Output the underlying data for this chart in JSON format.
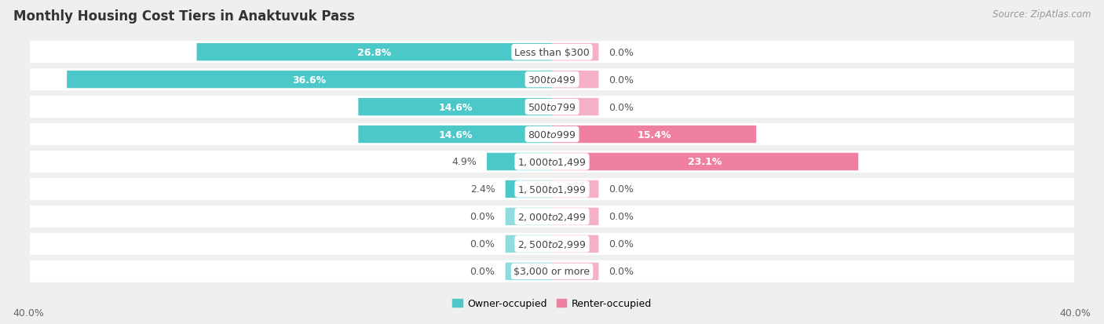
{
  "title": "Monthly Housing Cost Tiers in Anaktuvuk Pass",
  "source": "Source: ZipAtlas.com",
  "categories": [
    "Less than $300",
    "$300 to $499",
    "$500 to $799",
    "$800 to $999",
    "$1,000 to $1,499",
    "$1,500 to $1,999",
    "$2,000 to $2,499",
    "$2,500 to $2,999",
    "$3,000 or more"
  ],
  "owner_values": [
    26.8,
    36.6,
    14.6,
    14.6,
    4.9,
    2.4,
    0.0,
    0.0,
    0.0
  ],
  "renter_values": [
    0.0,
    0.0,
    0.0,
    15.4,
    23.1,
    0.0,
    0.0,
    0.0,
    0.0
  ],
  "owner_color": "#4DC8C8",
  "renter_color": "#F080A0",
  "owner_stub_color": "#90DCDC",
  "renter_stub_color": "#F5B0C5",
  "owner_label": "Owner-occupied",
  "renter_label": "Renter-occupied",
  "axis_max": 40.0,
  "stub_size": 3.5,
  "background_color": "#efefef",
  "row_bg_color": "#ffffff",
  "title_fontsize": 12,
  "source_fontsize": 8.5,
  "label_fontsize": 9,
  "tick_fontsize": 9,
  "category_fontsize": 9
}
